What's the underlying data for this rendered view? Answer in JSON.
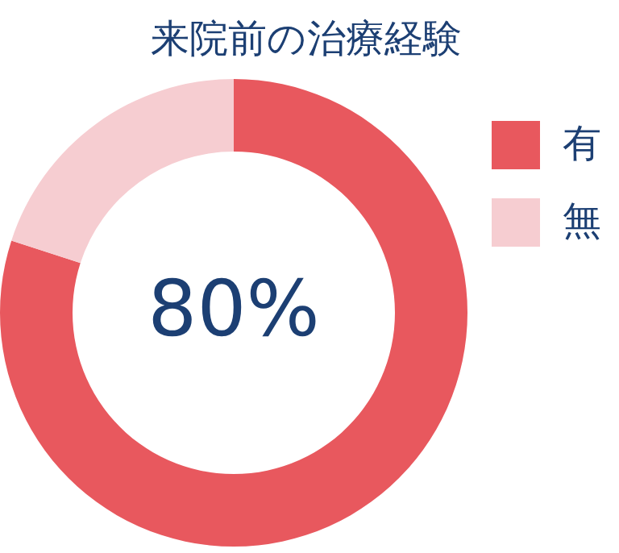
{
  "chart_data": {
    "type": "donut",
    "title": "来院前の治療経験",
    "categories": [
      "有",
      "無"
    ],
    "values": [
      80,
      20
    ],
    "colors": [
      "#e8585e",
      "#f6cdd1"
    ],
    "annotations": [
      "80%"
    ],
    "legend": "top right"
  }
}
